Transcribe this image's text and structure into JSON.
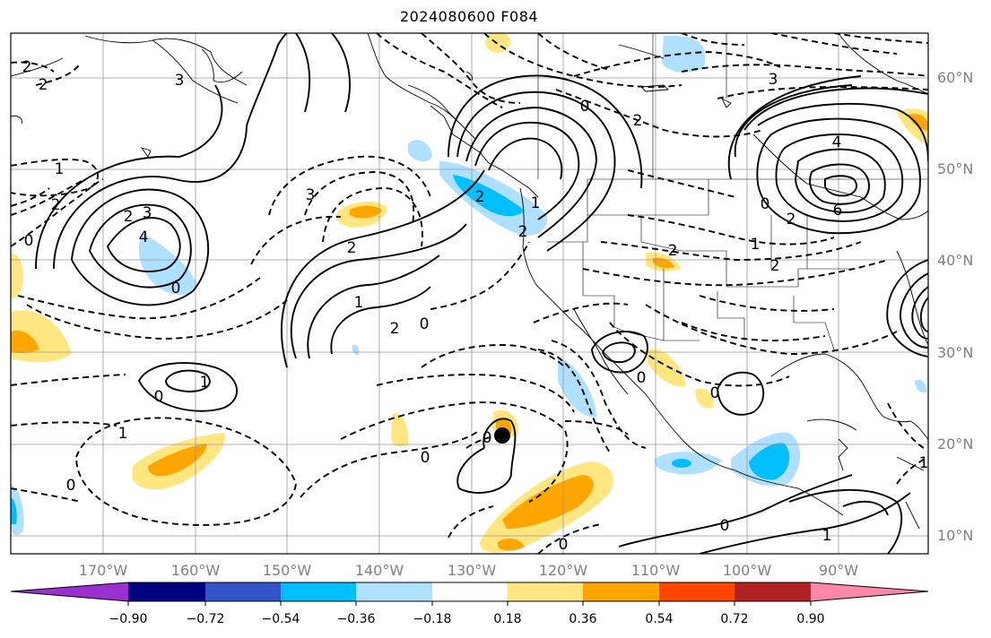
{
  "title": "2024080600 F084",
  "lat_labels": [
    "60°N",
    "50°N",
    "40°N",
    "30°N",
    "20°N",
    "10°N"
  ],
  "lon_labels": [
    "170°W",
    "160°W",
    "150°W",
    "140°W",
    "130°W",
    "120°W",
    "110°W",
    "100°W",
    "90°W"
  ],
  "contour_labels": [
    "2",
    "2",
    "1",
    "0",
    "2",
    "3",
    "4",
    "3",
    "2",
    "0",
    "0",
    "1",
    "1",
    "2",
    "3",
    "2",
    "1",
    "0",
    "2",
    "1",
    "0",
    "2",
    "0",
    "2",
    "3",
    "4",
    "6",
    "2",
    "2",
    "0",
    "0",
    "2",
    "0",
    "1",
    "0",
    "0",
    "0",
    "1",
    "1",
    "0"
  ],
  "colorbar": {
    "ticks": [
      "−0.90",
      "−0.72",
      "−0.54",
      "−0.36",
      "−0.18",
      "0.18",
      "0.36",
      "0.54",
      "0.72",
      "0.90"
    ],
    "colors": [
      "#9b30d0",
      "#000080",
      "#3355cc",
      "#00bfff",
      "#b0e0ff",
      "#ffffff",
      "#ffe680",
      "#ffa500",
      "#ff4500",
      "#b22222",
      "#ff88aa"
    ]
  },
  "map": {
    "projection": "lat-lon",
    "lon_range": [
      -180,
      -82
    ],
    "lat_range": [
      7,
      64
    ],
    "marker": {
      "lon": -125.5,
      "lat": 21.0
    }
  }
}
